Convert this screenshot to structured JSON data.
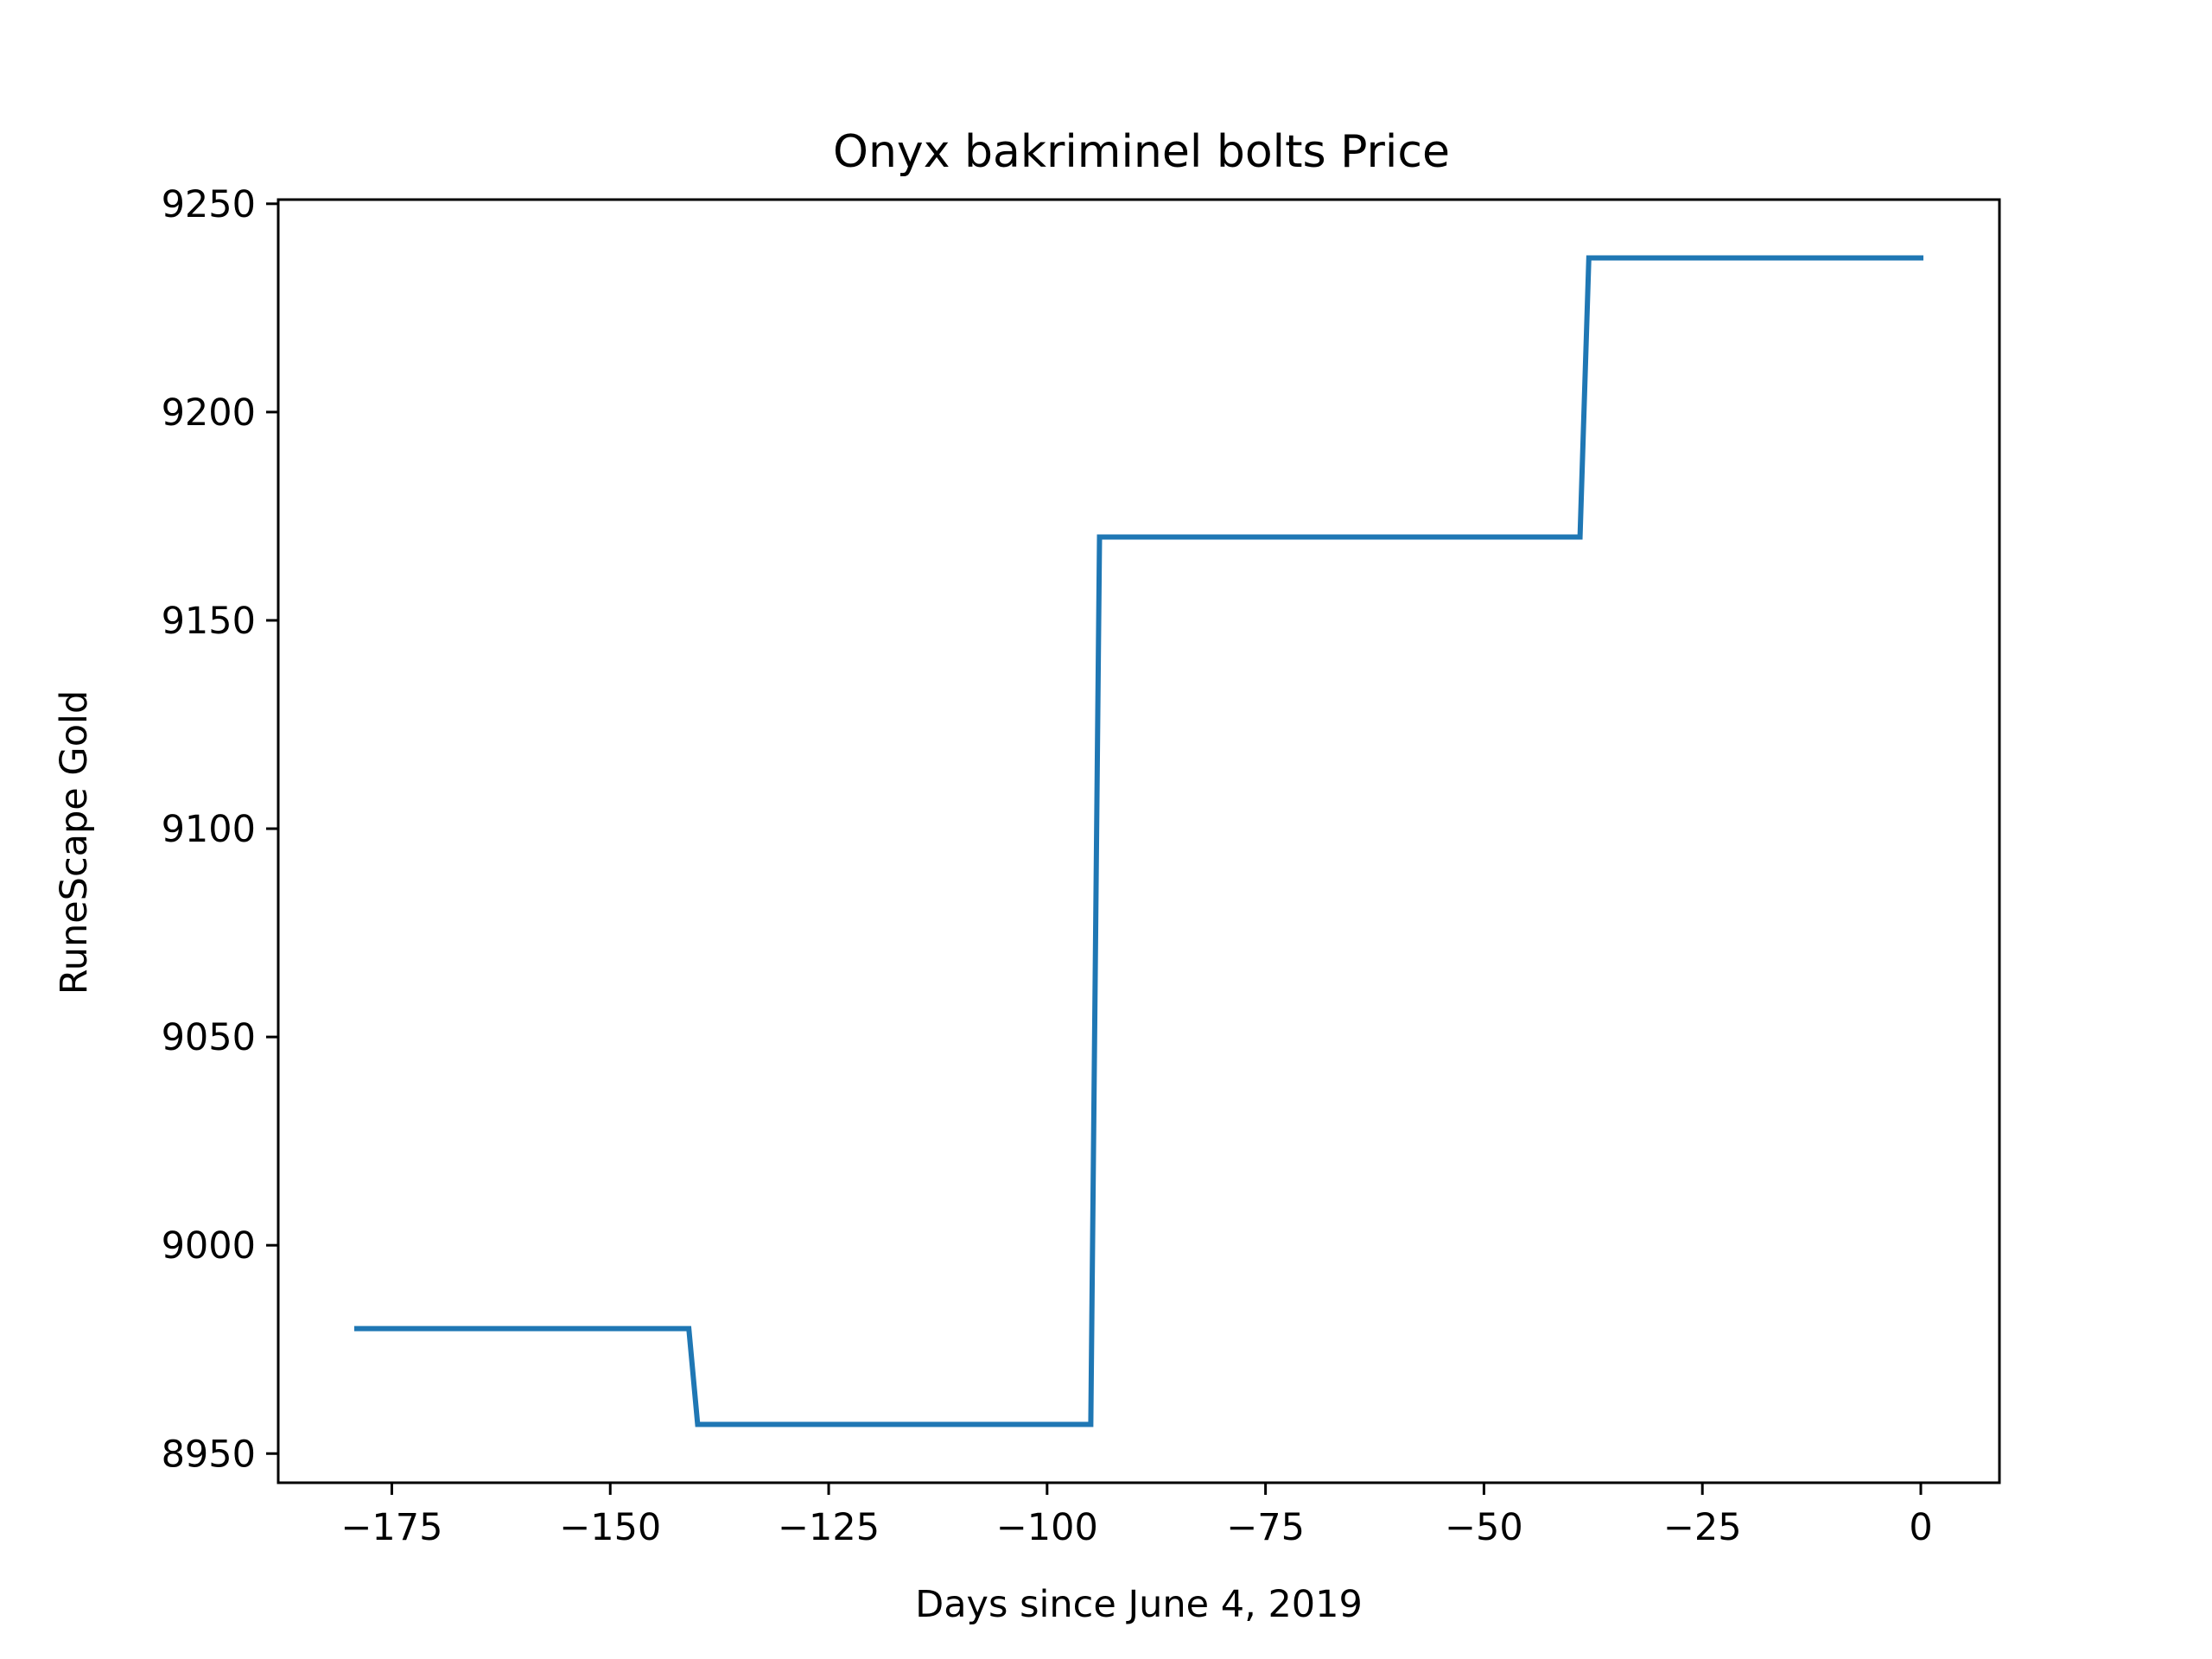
{
  "chart_data": {
    "type": "line",
    "title": "Onyx bakriminel bolts Price",
    "xlabel": "Days since June 4, 2019",
    "ylabel": "RuneScape Gold",
    "xlim": [
      -188,
      9
    ],
    "ylim": [
      8943,
      9251
    ],
    "xticks": [
      -175,
      -150,
      -125,
      -100,
      -75,
      -50,
      -25,
      0
    ],
    "xtick_labels": [
      "−175",
      "−150",
      "−125",
      "−100",
      "−75",
      "−50",
      "−25",
      "0"
    ],
    "yticks": [
      8950,
      9000,
      9050,
      9100,
      9150,
      9200,
      9250
    ],
    "ytick_labels": [
      "8950",
      "9000",
      "9050",
      "9100",
      "9150",
      "9200",
      "9250"
    ],
    "grid": false,
    "legend": "none",
    "series": [
      {
        "color": "#1f77b4",
        "x": [
          -179,
          -141,
          -140,
          -95,
          -94,
          -39,
          -38,
          0
        ],
        "y": [
          8980,
          8980,
          8957,
          8957,
          9170,
          9170,
          9237,
          9237
        ]
      }
    ]
  }
}
